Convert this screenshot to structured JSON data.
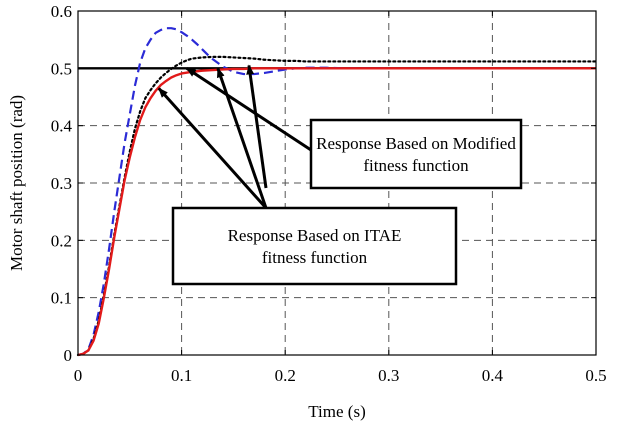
{
  "chart_data": {
    "type": "line",
    "xlabel": "Time (s)",
    "ylabel": "Motor shaft position (rad)",
    "xlim": [
      0,
      0.5
    ],
    "ylim": [
      0,
      0.6
    ],
    "xticks": [
      "0",
      "0.1",
      "0.2",
      "0.3",
      "0.4",
      "0.5"
    ],
    "yticks": [
      "0",
      "0.1",
      "0.2",
      "0.3",
      "0.4",
      "0.5",
      "0.6"
    ],
    "grid": true,
    "series": [
      {
        "color": "#000000",
        "style": "solid",
        "x": [
          0,
          0.5
        ],
        "y": [
          0.5,
          0.5
        ]
      },
      {
        "color": "#2b2bd6",
        "style": "dashed",
        "x": [
          0,
          0.005,
          0.01,
          0.015,
          0.02,
          0.025,
          0.03,
          0.035,
          0.04,
          0.045,
          0.05,
          0.055,
          0.06,
          0.065,
          0.07,
          0.075,
          0.08,
          0.085,
          0.09,
          0.095,
          0.1,
          0.105,
          0.11,
          0.115,
          0.12,
          0.125,
          0.13,
          0.14,
          0.15,
          0.16,
          0.17,
          0.18,
          0.19,
          0.2,
          0.21,
          0.22,
          0.24,
          0.26,
          0.28,
          0.3
        ],
        "y": [
          0,
          0.002,
          0.01,
          0.035,
          0.075,
          0.125,
          0.185,
          0.25,
          0.31,
          0.37,
          0.42,
          0.47,
          0.51,
          0.535,
          0.55,
          0.562,
          0.567,
          0.57,
          0.57,
          0.568,
          0.563,
          0.557,
          0.55,
          0.542,
          0.533,
          0.524,
          0.516,
          0.503,
          0.494,
          0.49,
          0.49,
          0.492,
          0.495,
          0.498,
          0.5,
          0.501,
          0.501,
          0.5,
          0.5,
          0.5
        ]
      },
      {
        "color": "#000000",
        "style": "dotted",
        "x": [
          0,
          0.005,
          0.01,
          0.015,
          0.02,
          0.025,
          0.03,
          0.035,
          0.04,
          0.045,
          0.05,
          0.055,
          0.06,
          0.065,
          0.07,
          0.075,
          0.08,
          0.085,
          0.09,
          0.095,
          0.1,
          0.105,
          0.11,
          0.12,
          0.13,
          0.14,
          0.15,
          0.16,
          0.17,
          0.18,
          0.19,
          0.2,
          0.21,
          0.22,
          0.24,
          0.26,
          0.28,
          0.3,
          0.35,
          0.4,
          0.45,
          0.5
        ],
        "y": [
          0,
          0.002,
          0.008,
          0.028,
          0.06,
          0.105,
          0.155,
          0.21,
          0.26,
          0.31,
          0.355,
          0.395,
          0.425,
          0.448,
          0.462,
          0.474,
          0.484,
          0.492,
          0.499,
          0.505,
          0.51,
          0.514,
          0.517,
          0.519,
          0.52,
          0.52,
          0.519,
          0.518,
          0.517,
          0.515,
          0.514,
          0.513,
          0.513,
          0.512,
          0.512,
          0.512,
          0.512,
          0.512,
          0.512,
          0.512,
          0.512,
          0.512
        ]
      },
      {
        "color": "#e21a1a",
        "style": "solid",
        "x": [
          0,
          0.005,
          0.01,
          0.015,
          0.02,
          0.025,
          0.03,
          0.035,
          0.04,
          0.045,
          0.05,
          0.055,
          0.06,
          0.065,
          0.07,
          0.075,
          0.08,
          0.085,
          0.09,
          0.095,
          0.1,
          0.11,
          0.12,
          0.13,
          0.14,
          0.15,
          0.16,
          0.17,
          0.18,
          0.2,
          0.25,
          0.3,
          0.35,
          0.4,
          0.45,
          0.5
        ],
        "y": [
          0,
          0.002,
          0.008,
          0.025,
          0.055,
          0.1,
          0.15,
          0.205,
          0.255,
          0.305,
          0.345,
          0.38,
          0.41,
          0.432,
          0.448,
          0.461,
          0.471,
          0.478,
          0.484,
          0.488,
          0.491,
          0.494,
          0.496,
          0.497,
          0.498,
          0.499,
          0.499,
          0.5,
          0.5,
          0.5,
          0.5,
          0.5,
          0.5,
          0.5,
          0.5,
          0.5
        ]
      }
    ],
    "annotations": [
      {
        "lines": [
          "Response Based on Modified",
          "fitness function"
        ],
        "arrows_to": [
          [
            0.105,
            0.5
          ],
          [
            0.165,
            0.505
          ]
        ]
      },
      {
        "lines": [
          "Response Based on ITAE",
          "fitness function"
        ],
        "arrows_to": [
          [
            0.078,
            0.465
          ],
          [
            0.135,
            0.5
          ]
        ]
      }
    ]
  }
}
